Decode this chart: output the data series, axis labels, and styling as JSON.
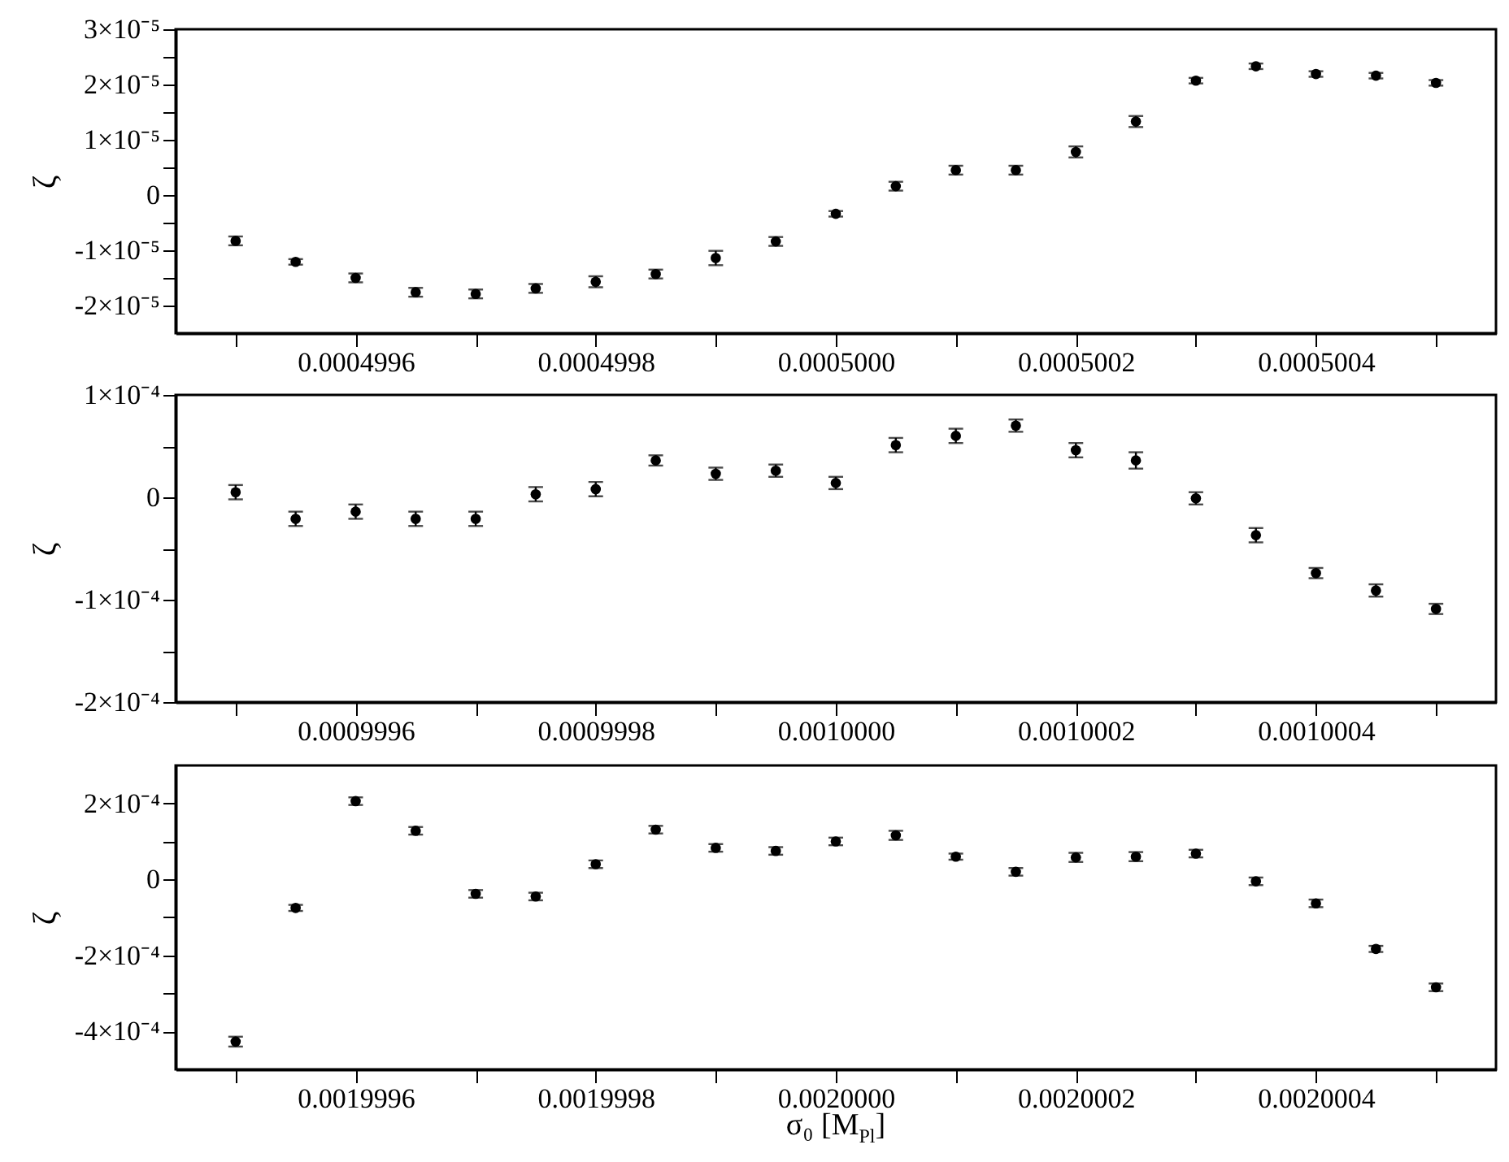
{
  "chart_data": [
    {
      "type": "scatter",
      "ylabel": "ζ",
      "marker": "circle",
      "x": [
        0.0004995,
        0.00049955,
        0.0004996,
        0.00049965,
        0.0004997,
        0.00049975,
        0.0004998,
        0.00049985,
        0.0004999,
        0.00049995,
        0.0005,
        0.00050005,
        0.0005001,
        0.00050015,
        0.0005002,
        0.00050025,
        0.0005003,
        0.00050035,
        0.0005004,
        0.00050045,
        0.0005005
      ],
      "xlim": [
        0.00049945,
        0.00050055
      ],
      "xticks": [
        {
          "value": 0.0004995,
          "label": null
        },
        0.0004996,
        {
          "value": 0.0004997,
          "label": null
        },
        0.0004998,
        {
          "value": 0.0004999,
          "label": null
        },
        {
          "value": 0.0005,
          "label": "0.0005000"
        },
        {
          "value": 0.0005001,
          "label": null
        },
        0.0005002,
        {
          "value": 0.0005003,
          "label": null
        },
        0.0005004,
        {
          "value": 0.0005005,
          "label": null
        }
      ],
      "ylim": [
        -2.5e-05,
        3e-05
      ],
      "yticks": [
        {
          "value": -2e-05,
          "label": "-2×10⁻⁵"
        },
        {
          "value": -1.5e-05,
          "label": null
        },
        {
          "value": -1e-05,
          "label": "-1×10⁻⁵"
        },
        {
          "value": -5e-06,
          "label": null
        },
        {
          "value": 0,
          "label": "0"
        },
        {
          "value": 5e-06,
          "label": null
        },
        {
          "value": 1e-05,
          "label": "1×10⁻⁵"
        },
        {
          "value": 1.5e-05,
          "label": null
        },
        {
          "value": 2e-05,
          "label": "2×10⁻⁵"
        },
        {
          "value": 2.5e-05,
          "label": null
        },
        {
          "value": 3e-05,
          "label": "3×10⁻⁵"
        }
      ],
      "series": [
        {
          "color": "#000000",
          "values": [
            -8.3e-06,
            -1.21e-05,
            -1.5e-05,
            -1.76e-05,
            -1.79e-05,
            -1.69e-05,
            -1.57e-05,
            -1.43e-05,
            -1.14e-05,
            -8.4e-06,
            -3.4e-06,
            1.6e-06,
            4.5e-06,
            4.5e-06,
            7.8e-06,
            1.33e-05,
            2.07e-05,
            2.33e-05,
            2.19e-05,
            2.16e-05,
            2.03e-05
          ],
          "errors": [
            8e-07,
            5e-07,
            8e-07,
            8e-07,
            8e-07,
            8e-07,
            1e-06,
            8e-07,
            1.3e-06,
            8e-07,
            5e-07,
            8e-07,
            8e-07,
            8e-07,
            1e-06,
            1e-06,
            5e-07,
            5e-07,
            5e-07,
            5e-07,
            5e-07
          ]
        }
      ]
    },
    {
      "type": "scatter",
      "ylabel": "ζ",
      "marker": "circle",
      "x": [
        0.0009995,
        0.00099955,
        0.0009996,
        0.00099965,
        0.0009997,
        0.00099975,
        0.0009998,
        0.00099985,
        0.0009999,
        0.00099995,
        0.001,
        0.00100005,
        0.0010001,
        0.00100015,
        0.0010002,
        0.00100025,
        0.0010003,
        0.00100035,
        0.0010004,
        0.00100045,
        0.0010005
      ],
      "xlim": [
        0.00099945,
        0.00100055
      ],
      "xticks": [
        {
          "value": 0.0009995,
          "label": null
        },
        0.0009996,
        {
          "value": 0.0009997,
          "label": null
        },
        0.0009998,
        {
          "value": 0.0009999,
          "label": null
        },
        {
          "value": 0.001,
          "label": "0.0010000"
        },
        {
          "value": 0.0010001,
          "label": null
        },
        0.0010002,
        {
          "value": 0.0010003,
          "label": null
        },
        0.0010004,
        {
          "value": 0.0010005,
          "label": null
        }
      ],
      "ylim": [
        -0.0002,
        0.0001
      ],
      "yticks": [
        {
          "value": -0.0002,
          "label": "-2×10⁻⁴"
        },
        {
          "value": -0.00015,
          "label": null
        },
        {
          "value": -0.0001,
          "label": "-1×10⁻⁴"
        },
        {
          "value": -5e-05,
          "label": null
        },
        {
          "value": 0,
          "label": "0"
        },
        {
          "value": 5e-05,
          "label": null
        },
        {
          "value": 0.0001,
          "label": "1×10⁻⁴"
        }
      ],
      "series": [
        {
          "color": "#000000",
          "values": [
            5e-06,
            -2.1e-05,
            -1.4e-05,
            -2.1e-05,
            -2.1e-05,
            3e-06,
            8e-06,
            3.6e-05,
            2.3e-05,
            2.6e-05,
            1.4e-05,
            5.1e-05,
            6e-05,
            7e-05,
            4.6e-05,
            3.6e-05,
            -1e-06,
            -3.7e-05,
            -7.4e-05,
            -9.1e-05,
            -0.000109
          ],
          "errors": [
            7e-06,
            7e-06,
            7e-06,
            7e-06,
            7e-06,
            7e-06,
            7e-06,
            5e-06,
            6e-06,
            6e-06,
            6e-06,
            7e-06,
            7e-06,
            6e-06,
            7e-06,
            8e-06,
            6e-06,
            7e-06,
            5e-06,
            6e-06,
            5e-06
          ]
        }
      ]
    },
    {
      "type": "scatter",
      "ylabel": "ζ",
      "xlabel": "σ₀ [M$_{Pl}$]",
      "marker": "circle",
      "x": [
        0.0019995,
        0.00199955,
        0.0019996,
        0.00199965,
        0.0019997,
        0.00199975,
        0.0019998,
        0.00199985,
        0.0019999,
        0.00199995,
        0.002,
        0.00200005,
        0.0020001,
        0.00200015,
        0.0020002,
        0.00200025,
        0.0020003,
        0.00200035,
        0.0020004,
        0.00200045,
        0.0020005
      ],
      "xlim": [
        0.00199945,
        0.00200055
      ],
      "xticks": [
        {
          "value": 0.0019995,
          "label": null
        },
        0.0019996,
        {
          "value": 0.0019997,
          "label": null
        },
        0.0019998,
        {
          "value": 0.0019999,
          "label": null
        },
        {
          "value": 0.002,
          "label": "0.0020000"
        },
        {
          "value": 0.0020001,
          "label": null
        },
        0.0020002,
        {
          "value": 0.0020003,
          "label": null
        },
        0.0020004,
        {
          "value": 0.0020005,
          "label": null
        }
      ],
      "ylim": [
        -0.0005,
        0.0003
      ],
      "yticks": [
        {
          "value": -0.0004,
          "label": "-4×10⁻⁴"
        },
        {
          "value": -0.0003,
          "label": null
        },
        {
          "value": -0.0002,
          "label": "-2×10⁻⁴"
        },
        {
          "value": -0.0001,
          "label": null
        },
        {
          "value": 0,
          "label": "0"
        },
        {
          "value": 0.0001,
          "label": null
        },
        {
          "value": 0.0002,
          "label": "2×10⁻⁴"
        }
      ],
      "series": [
        {
          "color": "#000000",
          "values": [
            -0.000427,
            -7.5e-05,
            0.000206,
            0.000128,
            -3.8e-05,
            -4.5e-05,
            4e-05,
            0.000131,
            8.3e-05,
            7.5e-05,
            0.0001,
            0.000116,
            6e-05,
            2e-05,
            5.8e-05,
            6e-05,
            6.8e-05,
            -5e-06,
            -6.3e-05,
            -0.000183,
            -0.000284
          ],
          "errors": [
            1.3e-05,
            8e-06,
            1e-05,
            1e-05,
            1e-05,
            1e-05,
            1e-05,
            1e-05,
            1e-05,
            1e-05,
            1e-05,
            1.2e-05,
            8e-06,
            1e-05,
            1.2e-05,
            1.2e-05,
            1e-05,
            1e-05,
            1e-05,
            8e-06,
            1e-05
          ]
        }
      ]
    }
  ]
}
